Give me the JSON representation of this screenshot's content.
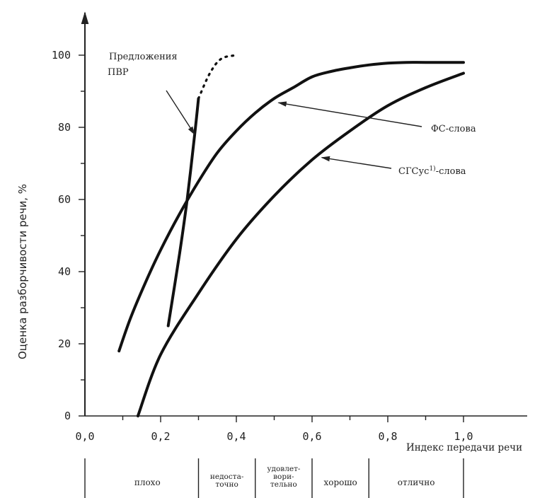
{
  "chart_data": {
    "type": "line",
    "xlabel": "Индекс передачи речи",
    "ylabel": "Оценка разборчивости речи, %",
    "xlim": [
      0.0,
      1.0
    ],
    "ylim": [
      0,
      100
    ],
    "x_ticks": [
      "0,0",
      "0,2",
      "0,4",
      "0,6",
      "0,8",
      "1,0"
    ],
    "y_ticks": [
      "0",
      "20",
      "40",
      "60",
      "80",
      "100"
    ],
    "grid": false,
    "series": [
      {
        "name": "Предложения ПВР",
        "x": [
          0.22,
          0.25,
          0.27,
          0.29,
          0.3
        ],
        "y": [
          25,
          45,
          60,
          78,
          88
        ],
        "dashed_extension": {
          "x": [
            0.3,
            0.33,
            0.36,
            0.4
          ],
          "y": [
            88,
            95,
            99,
            100
          ]
        }
      },
      {
        "name": "ФС-слова",
        "x": [
          0.09,
          0.12,
          0.16,
          0.2,
          0.25,
          0.3,
          0.35,
          0.4,
          0.45,
          0.5,
          0.55,
          0.6,
          0.65,
          0.7,
          0.75,
          0.8,
          0.85,
          0.9,
          1.0
        ],
        "y": [
          18,
          27,
          37,
          46,
          56,
          65,
          73,
          79,
          84,
          88,
          91,
          94,
          95.5,
          96.5,
          97.3,
          97.8,
          98,
          98,
          98
        ]
      },
      {
        "name": "СГСус¹⁾-слова",
        "x": [
          0.14,
          0.2,
          0.3,
          0.4,
          0.5,
          0.6,
          0.7,
          0.8,
          0.9,
          1.0
        ],
        "y": [
          0,
          17,
          34,
          49,
          61,
          71,
          79,
          86,
          91,
          95
        ]
      }
    ],
    "annotations": [
      {
        "text_lines": [
          "Предложения",
          "ПВР"
        ],
        "series": "Предложения ПВР"
      },
      {
        "text": "ФС-слова",
        "series": "ФС-слова"
      },
      {
        "text": "СГСус",
        "sup": "1)",
        "text_after": "-слова",
        "series": "СГСус¹⁾-слова"
      }
    ],
    "rating_scale": [
      {
        "label": [
          "плохо"
        ],
        "x_from": 0.0,
        "x_to": 0.3
      },
      {
        "label": [
          "недоста-",
          "точно"
        ],
        "x_from": 0.3,
        "x_to": 0.45
      },
      {
        "label": [
          "удовлет-",
          "вори-",
          "тельно"
        ],
        "x_from": 0.45,
        "x_to": 0.6
      },
      {
        "label": [
          "хорошо"
        ],
        "x_from": 0.6,
        "x_to": 0.75
      },
      {
        "label": [
          "отлично"
        ],
        "x_from": 0.75,
        "x_to": 1.0
      }
    ]
  }
}
